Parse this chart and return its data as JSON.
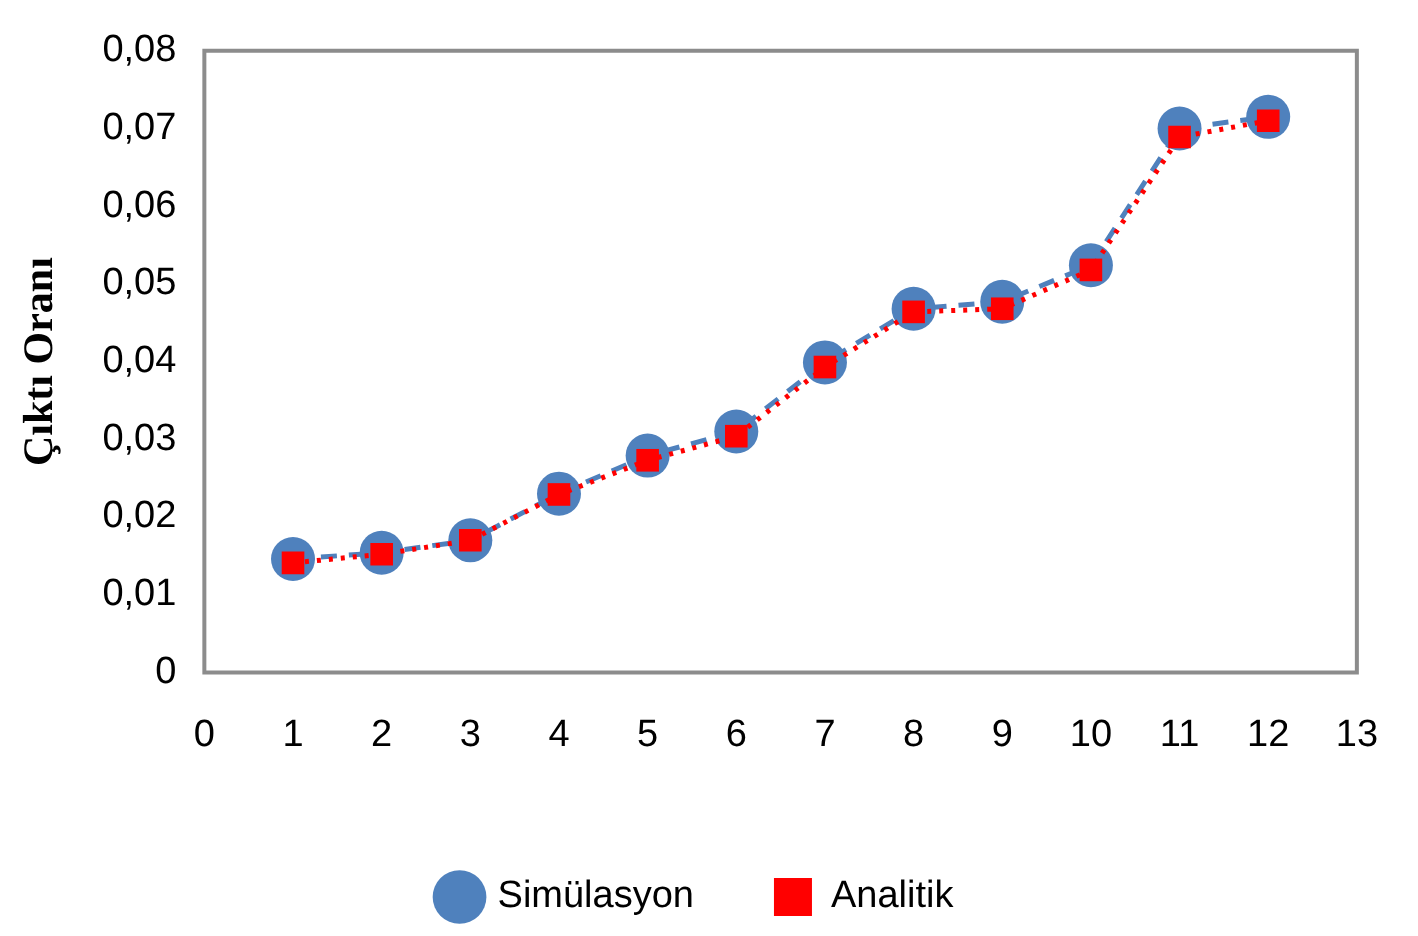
{
  "chart_data": {
    "type": "line",
    "ylabel": "Çıktı Oranı",
    "x": [
      1,
      2,
      3,
      4,
      5,
      6,
      7,
      8,
      9,
      10,
      11,
      12
    ],
    "series": [
      {
        "name": "Simülasyon",
        "color": "#4f81bd",
        "marker": "circle",
        "line_style": "dashed",
        "values": [
          0.0146,
          0.0154,
          0.017,
          0.023,
          0.0279,
          0.031,
          0.0399,
          0.0468,
          0.0477,
          0.0524,
          0.07,
          0.0715
        ]
      },
      {
        "name": "Analitik",
        "color": "#ff0000",
        "marker": "square",
        "line_style": "dotted",
        "values": [
          0.0141,
          0.0152,
          0.017,
          0.0229,
          0.0273,
          0.0304,
          0.0393,
          0.0464,
          0.0468,
          0.0518,
          0.0689,
          0.071
        ]
      }
    ],
    "xlim": [
      0,
      13
    ],
    "xticks": [
      0,
      1,
      2,
      3,
      4,
      5,
      6,
      7,
      8,
      9,
      10,
      11,
      12,
      13
    ],
    "ylim": [
      0,
      0.08
    ],
    "yticks": [
      0,
      {
        "value": 0.01,
        "label": "0,01"
      },
      {
        "value": 0.02,
        "label": "0,02"
      },
      {
        "value": 0.03,
        "label": "0,03"
      },
      {
        "value": 0.04,
        "label": "0,04"
      },
      {
        "value": 0.05,
        "label": "0,05"
      },
      {
        "value": 0.06,
        "label": "0,06"
      },
      {
        "value": 0.07,
        "label": "0,07"
      },
      {
        "value": 0.08,
        "label": "0,08"
      }
    ],
    "legend": "bottom"
  }
}
